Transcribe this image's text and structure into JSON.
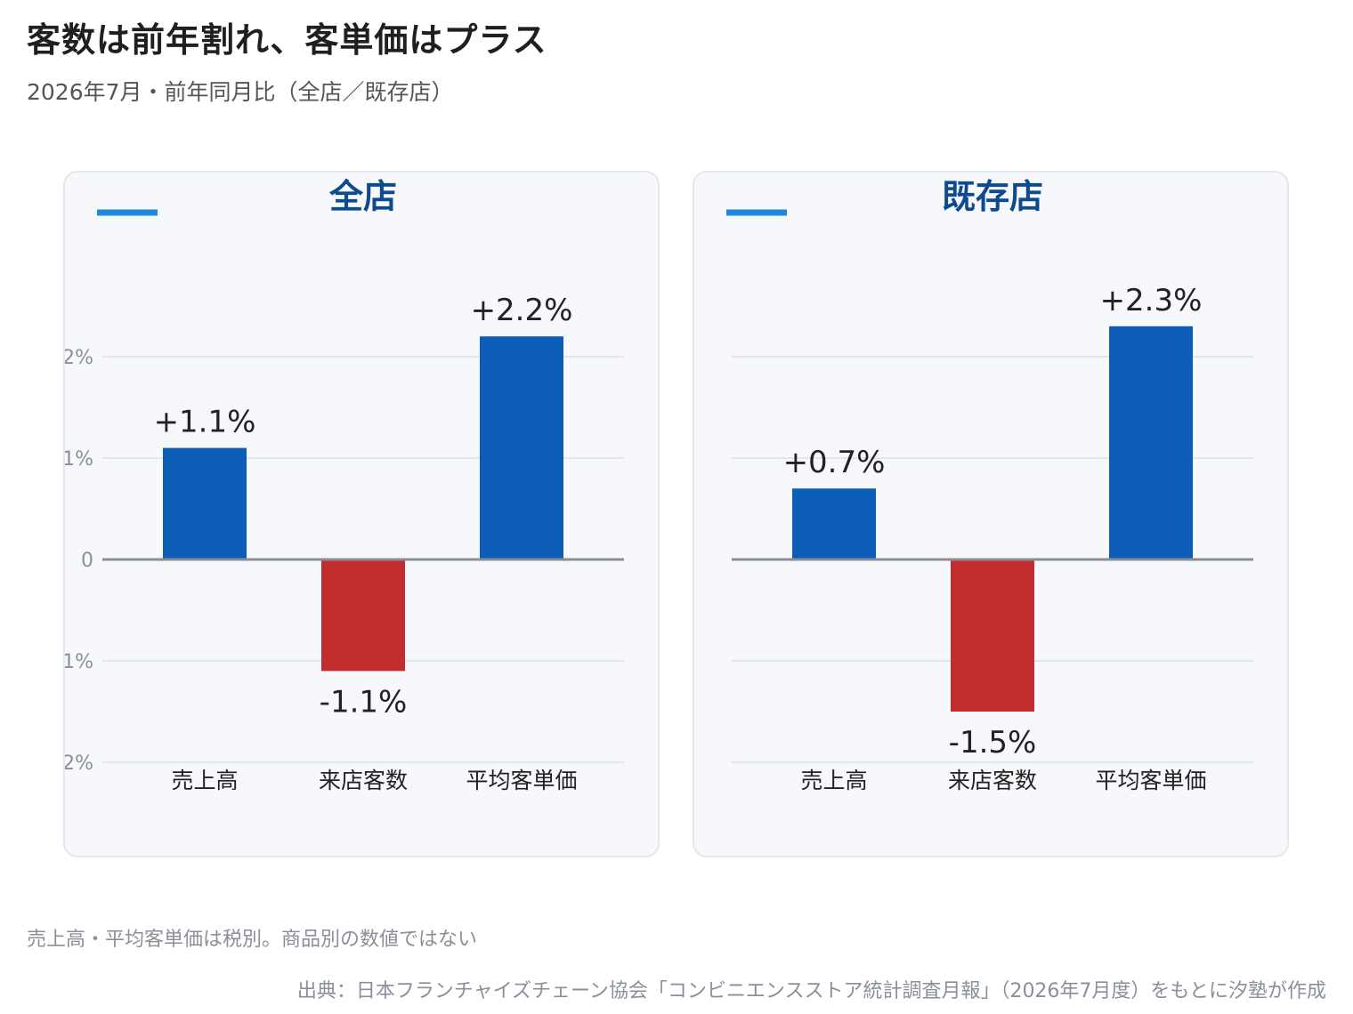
{
  "title": "客数は前年割れ、客単価はプラス",
  "subtitle": "2026年7月・前年同月比（全店／既存店）",
  "colors": {
    "positive": "#0b5db8",
    "negative": "#c42d2f",
    "legend_line": "#1e88e5",
    "panel_title": "#0d4a8f"
  },
  "chart_data": [
    {
      "type": "bar",
      "title": "全店",
      "categories": [
        "売上高",
        "来店客数",
        "平均客単価"
      ],
      "values": [
        1.1,
        -1.1,
        2.2
      ],
      "data_labels": [
        "+1.1%",
        "-1.1%",
        "+2.2%"
      ],
      "ylim": [
        -2.5,
        2.5
      ],
      "yticks": [
        2,
        1,
        0,
        -1,
        -2
      ],
      "ytick_labels": [
        "+2%",
        "+1%",
        "0",
        "-1%",
        "-2%"
      ],
      "grid": true,
      "legend": "top-left"
    },
    {
      "type": "bar",
      "title": "既存店",
      "categories": [
        "売上高",
        "来店客数",
        "平均客単価"
      ],
      "values": [
        0.7,
        -1.5,
        2.3
      ],
      "data_labels": [
        "+0.7%",
        "-1.5%",
        "+2.3%"
      ],
      "ylim": [
        -2.5,
        2.5
      ],
      "grid": true,
      "legend": "top-left"
    }
  ],
  "footer": {
    "note": "売上高・平均客単価は税別。商品別の数値ではない",
    "source": "出典：日本フランチャイズチェーン協会「コンビニエンスストア統計調査月報」（2026年7月度）をもとに汐塾が作成"
  }
}
